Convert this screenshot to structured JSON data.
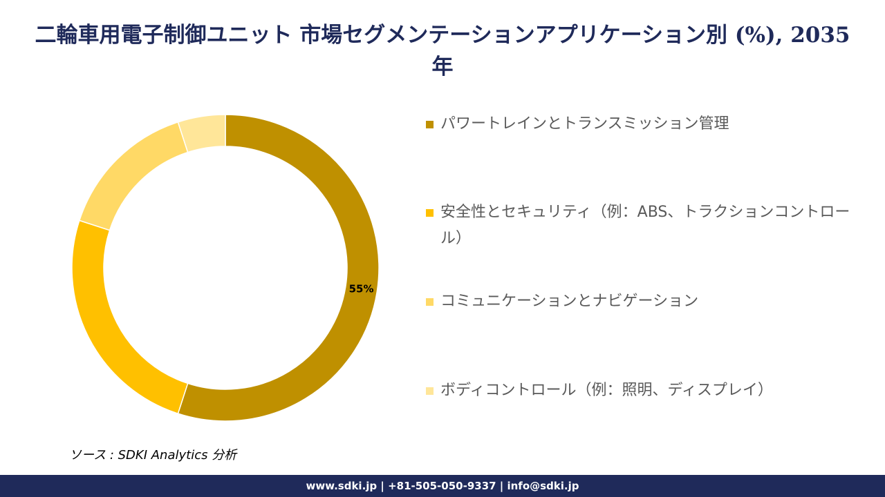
{
  "chart_data": {
    "type": "pie",
    "title": "二輪車用電子制御ユニット 市場セグメンテーションアプリケーション別 (%), 2035年",
    "categories": [
      "パワートレインとトランスミッション管理",
      "安全性とセキュリティ（例：ABS、トラクションコントロール）",
      "コミュニケーションとナビゲーション",
      "ボディコントロール（例：照明、ディスプレイ）"
    ],
    "values": [
      55,
      25,
      15,
      5
    ],
    "value_labels": [
      "55%",
      null,
      null,
      null
    ],
    "colors": [
      "#bf9000",
      "#ffc000",
      "#ffd966",
      "#ffe699"
    ]
  },
  "source": "ソース : SDKI Analytics 分析",
  "footer": "www.sdki.jp | +81-505-050-9337 | info@sdki.jp"
}
